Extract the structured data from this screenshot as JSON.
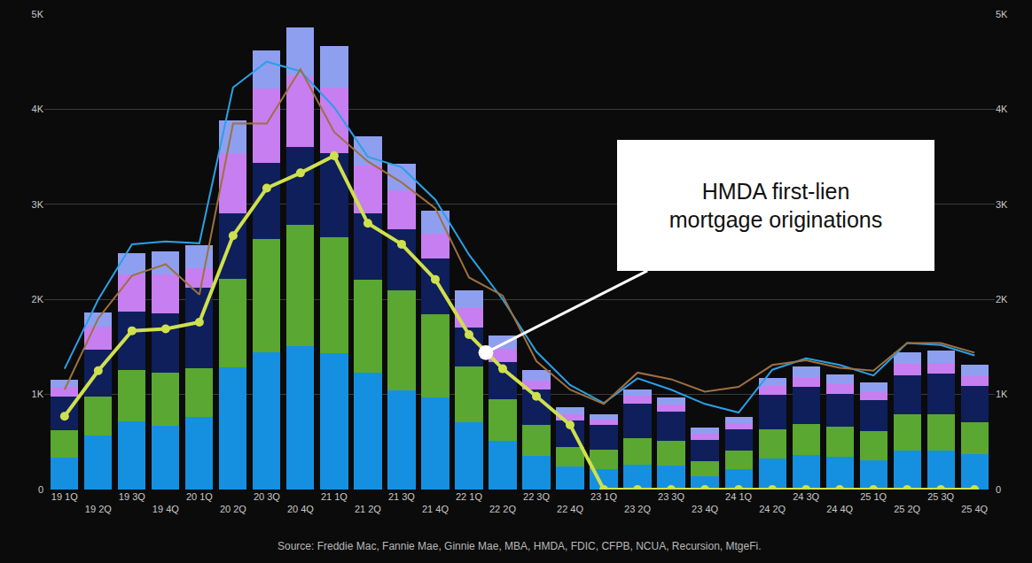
{
  "chart_data": {
    "type": "bar",
    "stacked": true,
    "grid": true,
    "categories": [
      "19 1Q",
      "19 2Q",
      "19 3Q",
      "19 4Q",
      "20 1Q",
      "20 2Q",
      "20 3Q",
      "20 4Q",
      "21 1Q",
      "21 2Q",
      "21 3Q",
      "21 4Q",
      "22 1Q",
      "22 2Q",
      "22 3Q",
      "22 4Q",
      "23 1Q",
      "23 2Q",
      "23 3Q",
      "23 4Q",
      "24 1Q",
      "24 2Q",
      "24 3Q",
      "24 4Q",
      "25 1Q",
      "25 2Q",
      "25 3Q",
      "25 4Q"
    ],
    "ylim": [
      0,
      5000
    ],
    "yticks": [
      0,
      {
        "value": 1000,
        "label": "1K"
      },
      {
        "value": 2000,
        "label": "2K"
      },
      {
        "value": 3000,
        "label": "3K"
      },
      {
        "value": 4000,
        "label": "4K"
      },
      {
        "value": 5000,
        "label": "5K"
      }
    ],
    "y2lim": [
      0,
      5000
    ],
    "y2ticks": [
      0,
      {
        "value": 1000,
        "label": "1K"
      },
      {
        "value": 2000,
        "label": "2K"
      },
      {
        "value": 3000,
        "label": "3K"
      },
      {
        "value": 4000,
        "label": "4K"
      },
      {
        "value": 5000,
        "label": "5K"
      }
    ],
    "series": [
      {
        "type": "bar",
        "color": "#1590e0",
        "values": [
          335,
          570,
          715,
          670,
          765,
          1285,
          1445,
          1510,
          1435,
          1230,
          1045,
          970,
          710,
          510,
          355,
          240,
          215,
          260,
          255,
          140,
          215,
          325,
          365,
          345,
          310,
          410,
          410,
          375
        ]
      },
      {
        "type": "bar",
        "color": "#5aa832",
        "values": [
          290,
          410,
          540,
          560,
          510,
          930,
          1190,
          1275,
          1220,
          975,
          1050,
          870,
          585,
          440,
          325,
          205,
          205,
          280,
          255,
          160,
          195,
          310,
          325,
          315,
          305,
          380,
          380,
          335
        ]
      },
      {
        "type": "bar",
        "color": "#0f1f5c",
        "values": [
          355,
          490,
          615,
          625,
          845,
          690,
          800,
          820,
          885,
          700,
          640,
          590,
          410,
          390,
          370,
          280,
          260,
          360,
          310,
          220,
          225,
          360,
          390,
          345,
          325,
          410,
          430,
          380
        ]
      },
      {
        "type": "bar",
        "color": "#c77ef0",
        "values": [
          100,
          245,
          390,
          410,
          210,
          635,
          785,
          745,
          690,
          505,
          410,
          260,
          205,
          140,
          95,
          65,
          55,
          85,
          75,
          70,
          65,
          95,
          105,
          110,
          85,
          120,
          110,
          100
        ]
      },
      {
        "type": "bar",
        "color": "#8f9ff0",
        "values": [
          75,
          150,
          225,
          240,
          240,
          345,
          400,
          510,
          435,
          305,
          280,
          240,
          185,
          140,
          110,
          75,
          55,
          70,
          75,
          60,
          65,
          85,
          110,
          95,
          100,
          125,
          130,
          120
        ]
      },
      {
        "type": "line",
        "color": "#2aa0e6",
        "values": [
          1270,
          2000,
          2580,
          2610,
          2590,
          4230,
          4500,
          4400,
          4020,
          3500,
          3390,
          3050,
          2470,
          2000,
          1450,
          1100,
          910,
          1170,
          1050,
          900,
          810,
          1260,
          1380,
          1310,
          1200,
          1540,
          1520,
          1410
        ]
      },
      {
        "type": "line",
        "color": "#9e7040",
        "values": [
          1050,
          1800,
          2250,
          2370,
          2050,
          3850,
          3850,
          4420,
          3760,
          3450,
          3230,
          2960,
          2230,
          2040,
          1350,
          1050,
          900,
          1230,
          1160,
          1030,
          1080,
          1310,
          1360,
          1280,
          1250,
          1540,
          1540,
          1440
        ]
      },
      {
        "type": "line",
        "color": "#cfe04d",
        "marker": "circle",
        "values": [
          770,
          1250,
          1670,
          1690,
          1760,
          2670,
          3170,
          3330,
          3510,
          2800,
          2580,
          2210,
          1630,
          1270,
          980,
          680,
          0,
          0,
          0,
          0,
          0,
          0,
          0,
          0,
          0,
          0,
          0,
          0
        ]
      }
    ],
    "annotation": {
      "lines": [
        "HMDA first-lien",
        "mortgage originations"
      ],
      "category": "22 2Q",
      "y": 1440
    },
    "caption": "Source: Freddie Mac, Fannie Mae, Ginnie Mae, MBA, HMDA, FDIC, CFPB, NCUA, Recursion, MtgeFi."
  }
}
